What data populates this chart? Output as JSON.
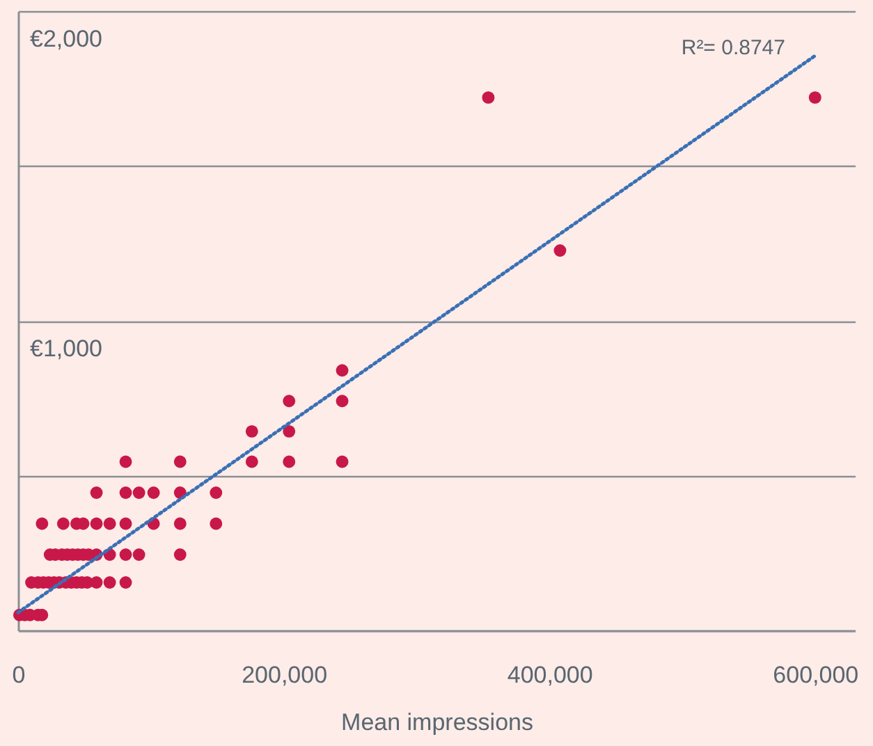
{
  "chart_data": {
    "type": "scatter",
    "xlabel": "Mean impressions",
    "xlim": [
      0,
      630000
    ],
    "xticks": [
      0,
      {
        "value": 200000,
        "label": "200,000"
      },
      {
        "value": 400000,
        "label": "400,000"
      },
      {
        "value": 600000,
        "label": "600,000"
      }
    ],
    "ylim": [
      0,
      2000
    ],
    "yticks": [
      {
        "value": 0,
        "label": null
      },
      {
        "value": 500,
        "label": null
      },
      {
        "value": 1000,
        "label": "€1,000"
      },
      {
        "value": 1500,
        "label": null
      },
      {
        "value": 2000,
        "label": "€2,000"
      }
    ],
    "grid": "y",
    "marker": "circle",
    "annotations": [
      "R²= 0.8747"
    ],
    "series": [
      {
        "color": "#c8184a",
        "x": [
          1000,
          5000,
          9000,
          15000,
          18000,
          10000,
          15000,
          19000,
          23000,
          27000,
          31000,
          36000,
          40000,
          44000,
          48000,
          52000,
          59000,
          69000,
          81000,
          24000,
          28000,
          33000,
          37000,
          41000,
          45000,
          49000,
          53000,
          59000,
          69000,
          81000,
          91000,
          122000,
          18000,
          34000,
          44000,
          49000,
          59000,
          69000,
          81000,
          102000,
          122000,
          149000,
          59000,
          81000,
          91000,
          102000,
          122000,
          149000,
          81000,
          122000,
          176000,
          204000,
          244000,
          176000,
          204000,
          204000,
          244000,
          244000,
          408000,
          354000,
          600000
        ],
        "values": [
          50,
          50,
          50,
          50,
          50,
          155,
          155,
          155,
          155,
          155,
          155,
          155,
          155,
          155,
          155,
          155,
          155,
          155,
          155,
          245,
          245,
          245,
          245,
          245,
          245,
          245,
          245,
          245,
          245,
          245,
          245,
          245,
          345,
          345,
          345,
          345,
          345,
          345,
          345,
          345,
          345,
          345,
          445,
          445,
          445,
          445,
          445,
          445,
          545,
          545,
          545,
          545,
          545,
          643,
          643,
          741,
          741,
          840,
          1227,
          1721,
          1721
        ]
      },
      {
        "type": "line",
        "color": "#3a70b5",
        "line_style": "dotted",
        "marker": "none",
        "x": [
          0,
          600000
        ],
        "values": [
          58,
          1856
        ]
      }
    ]
  }
}
